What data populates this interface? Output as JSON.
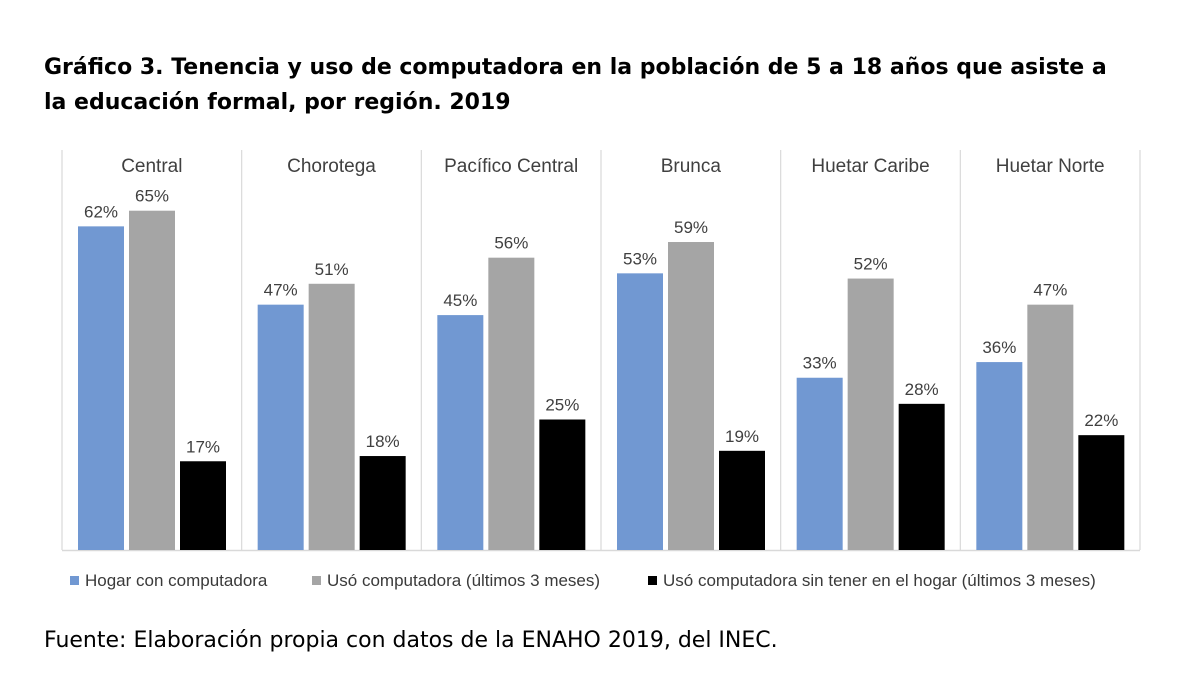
{
  "title": {
    "line1": "Gráfico 3. Tenencia y uso de computadora en la población de 5 a 18 años que asiste a",
    "line2": "la educación formal, por región. 2019"
  },
  "source": "Fuente: Elaboración propia con datos de la ENAHO 2019, del INEC.",
  "colors": {
    "series_0": "#7198d2",
    "series_1": "#a5a5a5",
    "series_2": "#000000",
    "divider": "#d9d9d9",
    "label_text": "#404040"
  },
  "chart_data": {
    "type": "bar",
    "categories": [
      "Central",
      "Chorotega",
      "Pacífico Central",
      "Brunca",
      "Huetar Caribe",
      "Huetar Norte"
    ],
    "series": [
      {
        "name": "Hogar con computadora",
        "values": [
          62,
          47,
          45,
          53,
          33,
          36
        ]
      },
      {
        "name": "Usó computadora (últimos 3 meses)",
        "values": [
          65,
          51,
          56,
          59,
          52,
          47
        ]
      },
      {
        "name": "Usó computadora sin tener en el hogar (últimos 3 meses)",
        "values": [
          17,
          18,
          25,
          19,
          28,
          22
        ]
      }
    ],
    "value_suffix": "%",
    "ylim": [
      0,
      70
    ],
    "grid": false,
    "legend_position": "bottom",
    "category_labels_position": "top"
  }
}
